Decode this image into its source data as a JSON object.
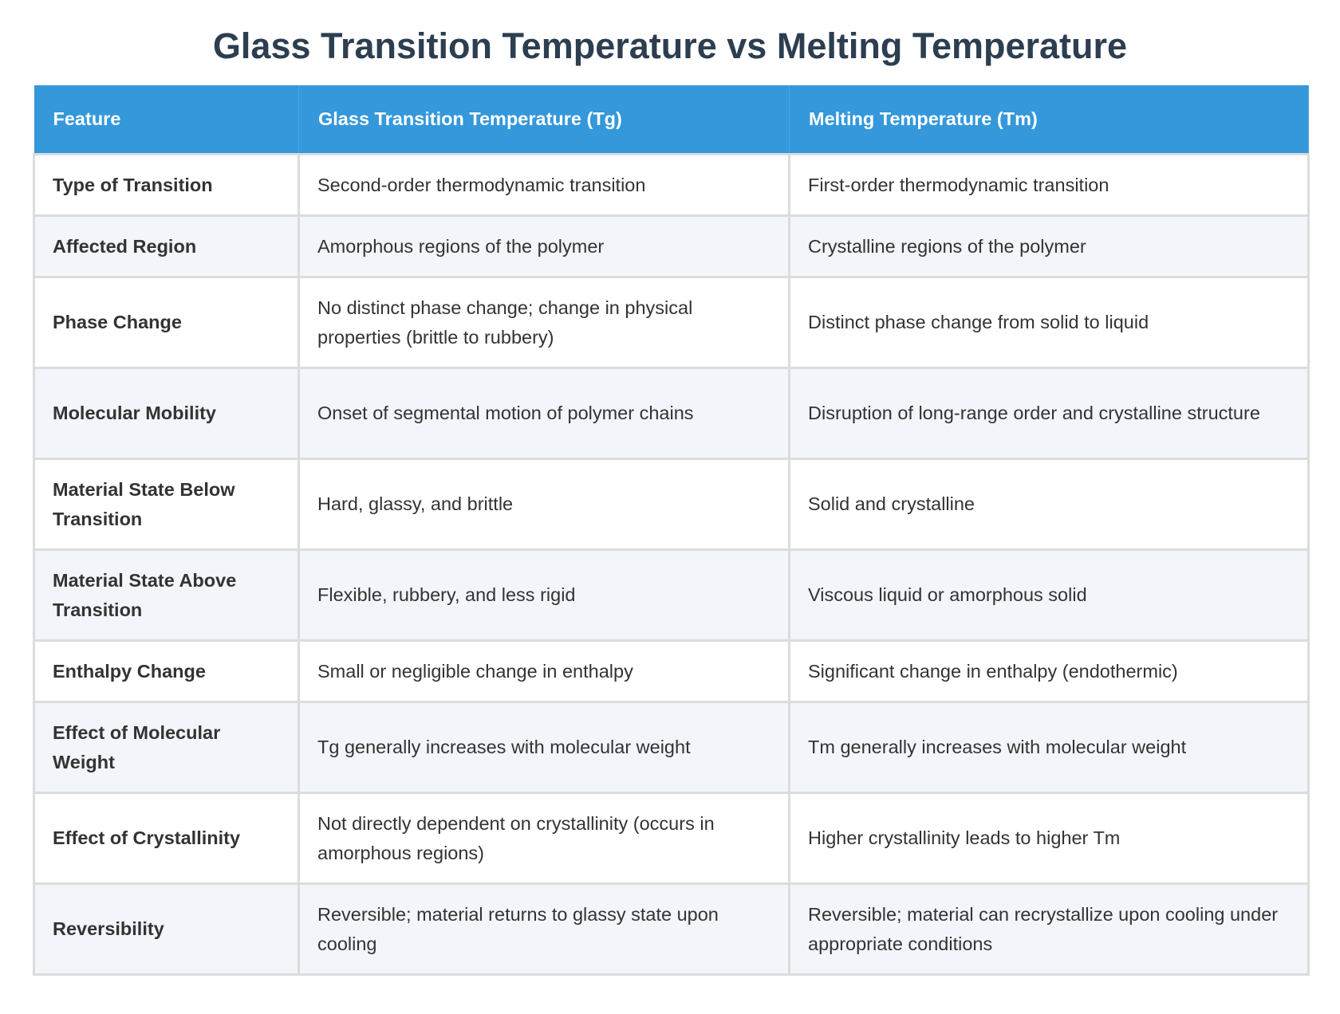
{
  "title": "Glass Transition Temperature vs Melting Temperature",
  "colors": {
    "header": "#3498db",
    "title": "#2c3e50"
  },
  "headers": [
    "Feature",
    "Glass Transition Temperature (Tg)",
    "Melting Temperature (Tm)"
  ],
  "rows": [
    {
      "feature": "Type of Transition",
      "tg": "Second-order thermodynamic transition",
      "tm": "First-order thermodynamic transition"
    },
    {
      "feature": "Affected Region",
      "tg": "Amorphous regions of the polymer",
      "tm": "Crystalline regions of the polymer"
    },
    {
      "feature": "Phase Change",
      "tg": "No distinct phase change; change in physical properties (brittle to rubbery)",
      "tm": "Distinct phase change from solid to liquid"
    },
    {
      "feature": "Molecular Mobility",
      "tg": "Onset of segmental motion of polymer chains",
      "tm": "Disruption of long-range order and crystalline structure"
    },
    {
      "feature": "Material State Below Transition",
      "tg": "Hard, glassy, and brittle",
      "tm": "Solid and crystalline"
    },
    {
      "feature": "Material State Above Transition",
      "tg": "Flexible, rubbery, and less rigid",
      "tm": "Viscous liquid or amorphous solid"
    },
    {
      "feature": "Enthalpy Change",
      "tg": "Small or negligible change in enthalpy",
      "tm": "Significant change in enthalpy (endothermic)"
    },
    {
      "feature": "Effect of Molecular Weight",
      "tg": "Tg generally increases with molecular weight",
      "tm": "Tm generally increases with molecular weight"
    },
    {
      "feature": "Effect of Crystallinity",
      "tg": "Not directly dependent on crystallinity (occurs in amorphous regions)",
      "tm": "Higher crystallinity leads to higher Tm"
    },
    {
      "feature": "Reversibility",
      "tg": "Reversible; material returns to glassy state upon cooling",
      "tm": "Reversible; material can recrystallize upon cooling under appropriate conditions"
    }
  ]
}
